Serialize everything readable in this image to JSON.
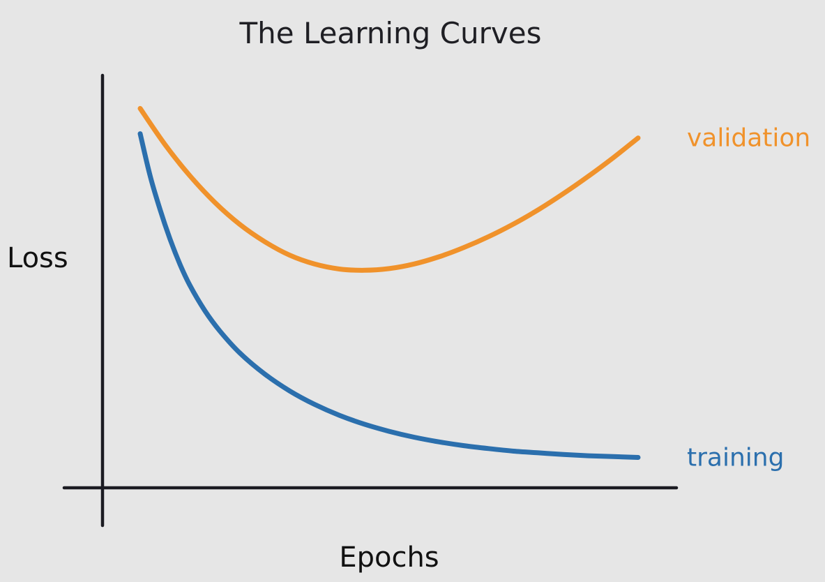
{
  "chart_data": {
    "type": "line",
    "title": "The Learning Curves",
    "xlabel": "Epochs",
    "ylabel": "Loss",
    "xlim": [
      0,
      100
    ],
    "ylim": [
      0,
      100
    ],
    "grid": false,
    "legend": "right, inline labels at line ends",
    "series": [
      {
        "name": "validation",
        "color": "#f0922b",
        "x": [
          0,
          5,
          10,
          15,
          20,
          25,
          30,
          35,
          40,
          45,
          50,
          55,
          60,
          65,
          70,
          75,
          80,
          85,
          90,
          95,
          100
        ],
        "y": [
          90.0,
          81.4,
          74.0,
          67.7,
          62.5,
          58.4,
          55.2,
          53.1,
          51.9,
          51.6,
          52.0,
          53.1,
          54.8,
          57.0,
          59.6,
          62.6,
          66.0,
          69.8,
          73.9,
          78.3,
          83.0
        ]
      },
      {
        "name": "training",
        "color": "#2b6fad",
        "x": [
          0,
          2,
          4,
          6,
          8,
          10,
          13,
          16,
          20,
          25,
          30,
          35,
          40,
          45,
          50,
          55,
          60,
          65,
          70,
          75,
          80,
          85,
          90,
          95,
          100
        ],
        "y": [
          84.0,
          74.0,
          66.0,
          59.0,
          53.0,
          48.0,
          42.0,
          37.2,
          32.0,
          27.0,
          23.0,
          19.8,
          17.2,
          15.1,
          13.4,
          12.0,
          10.9,
          10.0,
          9.3,
          8.7,
          8.3,
          7.9,
          7.6,
          7.4,
          7.2
        ]
      }
    ]
  }
}
